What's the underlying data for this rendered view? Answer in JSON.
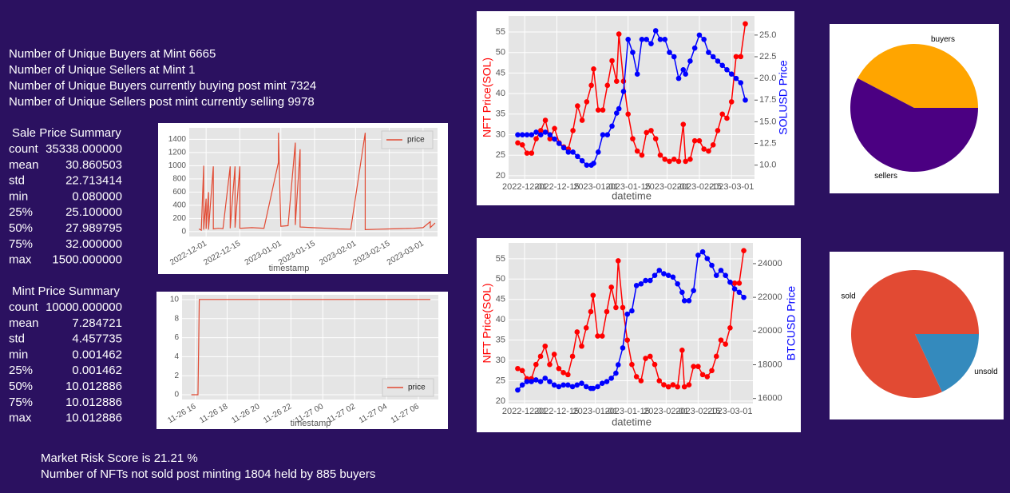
{
  "summary": {
    "lines": [
      "Number of Unique Buyers at Mint 6665",
      "Number of Unique Sellers at Mint 1",
      "Number of Unique Buyers currently buying post mint 7324",
      "Number of Unique Sellers post mint currently selling 9978"
    ]
  },
  "sale_summary": {
    "title": "Sale Price Summary",
    "rows": [
      [
        "count",
        "35338.000000"
      ],
      [
        "mean",
        "30.860503"
      ],
      [
        "std",
        "22.713414"
      ],
      [
        "min",
        "0.080000"
      ],
      [
        "25%",
        "25.100000"
      ],
      [
        "50%",
        "27.989795"
      ],
      [
        "75%",
        "32.000000"
      ],
      [
        "max",
        "1500.000000"
      ]
    ]
  },
  "mint_summary": {
    "title": "Mint Price Summary",
    "rows": [
      [
        "count",
        "10000.000000"
      ],
      [
        "mean",
        "7.284721"
      ],
      [
        "std",
        "4.457735"
      ],
      [
        "min",
        "0.001462"
      ],
      [
        "25%",
        "0.001462"
      ],
      [
        "50%",
        "10.012886"
      ],
      [
        "75%",
        "10.012886"
      ],
      [
        "max",
        "10.012886"
      ]
    ]
  },
  "footer": {
    "lines": [
      "Market Risk Score is 21.21 %",
      "Number of NFTs not sold post minting 1804 held by 885 buyers"
    ]
  },
  "chart_data": [
    {
      "type": "line",
      "xlabel": "timestamp",
      "grid": true,
      "legend": "upper right",
      "x": [
        "2022-11-28",
        "2022-11-29",
        "2022-11-30",
        "2022-11-30",
        "2022-12-01",
        "2022-12-01",
        "2022-12-02",
        "2022-12-02",
        "2022-12-04",
        "2022-12-04",
        "2022-12-06",
        "2022-12-08",
        "2022-12-11",
        "2022-12-11",
        "2022-12-13",
        "2022-12-13",
        "2022-12-15",
        "2022-12-15",
        "2022-12-20",
        "2022-12-25",
        "2022-12-31",
        "2022-12-31",
        "2023-01-01",
        "2023-01-04",
        "2023-01-07",
        "2023-01-07",
        "2023-01-09",
        "2023-01-09",
        "2023-01-14",
        "2023-01-20",
        "2023-01-25",
        "2023-01-30",
        "2023-02-05",
        "2023-02-05",
        "2023-02-10",
        "2023-02-15",
        "2023-02-20",
        "2023-02-25",
        "2023-03-01",
        "2023-03-04",
        "2023-03-04",
        "2023-03-06"
      ],
      "series": [
        {
          "name": "price",
          "color": "#e24a33",
          "values": [
            40,
            20,
            1000,
            30,
            500,
            40,
            600,
            30,
            990,
            40,
            50,
            45,
            990,
            50,
            990,
            60,
            990,
            50,
            60,
            50,
            1050,
            1500,
            80,
            90,
            1350,
            100,
            1250,
            70,
            60,
            50,
            40,
            35,
            1500,
            30,
            35,
            40,
            45,
            50,
            60,
            150,
            60,
            130
          ]
        }
      ],
      "xlim": [
        "2022-11-24",
        "2023-03-07"
      ],
      "xticks": [
        "2022-12-01",
        "2022-12-15",
        "2023-01-01",
        "2023-01-15",
        "2023-02-01",
        "2023-02-15",
        "2023-03-01"
      ],
      "ylim": [
        -75,
        1575
      ],
      "yticks": [
        0,
        200,
        400,
        600,
        800,
        1000,
        1200,
        1400
      ]
    },
    {
      "type": "line",
      "xlabel": "timestamp",
      "grid": true,
      "legend": "lower right",
      "x": [
        "11-26 15:45",
        "11-26 16:10",
        "11-26 16:15",
        "11-27 06:45"
      ],
      "series": [
        {
          "name": "price",
          "color": "#e24a33",
          "values": [
            0.001462,
            0.001462,
            10.012886,
            10.012886
          ]
        }
      ],
      "xlim": [
        "11-26 15:10",
        "11-27 07:15"
      ],
      "xticks": [
        "11-26 16",
        "11-26 18",
        "11-26 20",
        "11-26 22",
        "11-27 00",
        "11-27 02",
        "11-27 04",
        "11-27 06"
      ],
      "ylim": [
        -0.5,
        10.5
      ],
      "yticks": [
        0,
        2,
        4,
        6,
        8,
        10
      ]
    },
    {
      "type": "line",
      "xlabel": "datetime",
      "ylabel": "NFT Price(SOL)",
      "y2label": "SOLUSD Price",
      "grid": true,
      "markers": true,
      "x": [
        "2022-11-28",
        "2022-11-30",
        "2022-12-02",
        "2022-12-04",
        "2022-12-06",
        "2022-12-08",
        "2022-12-10",
        "2022-12-12",
        "2022-12-14",
        "2022-12-16",
        "2022-12-18",
        "2022-12-20",
        "2022-12-22",
        "2022-12-24",
        "2022-12-26",
        "2022-12-28",
        "2022-12-30",
        "2022-12-31",
        "2023-01-02",
        "2023-01-04",
        "2023-01-06",
        "2023-01-08",
        "2023-01-10",
        "2023-01-11",
        "2023-01-13",
        "2023-01-15",
        "2023-01-17",
        "2023-01-19",
        "2023-01-21",
        "2023-01-23",
        "2023-01-25",
        "2023-01-27",
        "2023-01-29",
        "2023-01-31",
        "2023-02-02",
        "2023-02-04",
        "2023-02-06",
        "2023-02-08",
        "2023-02-09",
        "2023-02-11",
        "2023-02-13",
        "2023-02-15",
        "2023-02-17",
        "2023-02-19",
        "2023-02-21",
        "2023-02-23",
        "2023-02-25",
        "2023-02-27",
        "2023-03-01",
        "2023-03-03",
        "2023-03-05",
        "2023-03-07"
      ],
      "series": [
        {
          "color": "#ff0000",
          "values": [
            28,
            27.5,
            25.5,
            25.5,
            29,
            31,
            33.5,
            29,
            31.5,
            28,
            27,
            26.5,
            31,
            37,
            33.5,
            38,
            42,
            46,
            36,
            36,
            42,
            48,
            43,
            54.5,
            43,
            35,
            29,
            26,
            25,
            30.5,
            31,
            29,
            25,
            24,
            23.5,
            24,
            23.5,
            32.5,
            23.5,
            24,
            28.5,
            28.5,
            26.5,
            26,
            27.5,
            31,
            35,
            34,
            38,
            49,
            49,
            57
          ]
        },
        {
          "color": "#0000ff",
          "axis": "y2",
          "values": [
            13.5,
            13.5,
            13.5,
            13.5,
            13.8,
            13.5,
            13.8,
            13.5,
            13,
            12.5,
            12,
            11.5,
            11.5,
            11,
            10.5,
            10,
            10,
            10.2,
            11.5,
            13.5,
            13.5,
            14.5,
            16,
            16.5,
            18.5,
            24.5,
            23,
            20.5,
            24.5,
            24.5,
            24,
            25.5,
            24.5,
            24.5,
            23,
            22.5,
            20,
            21,
            20.5,
            22,
            23.5,
            25,
            24.5,
            23,
            22.5,
            22,
            21.5,
            21,
            20.5,
            20,
            19.5,
            17.5
          ]
        }
      ],
      "xlim": [
        "2022-11-24",
        "2023-03-11"
      ],
      "xticks": [
        "2022-12-01",
        "2022-12-15",
        "2023-01-01",
        "2023-01-15",
        "2023-02-01",
        "2023-02-15",
        "2023-03-01"
      ],
      "ylim": [
        19.2,
        58.9
      ],
      "yticks": [
        20,
        25,
        30,
        35,
        40,
        45,
        50,
        55
      ],
      "y2lim": [
        8.4,
        27.2
      ],
      "y2ticks": [
        {
          "value": 10,
          "label": "10.0"
        },
        12.5,
        {
          "value": 15,
          "label": "15.0"
        },
        17.5,
        {
          "value": 20,
          "label": "20.0"
        },
        22.5,
        {
          "value": 25,
          "label": "25.0"
        }
      ]
    },
    {
      "type": "line",
      "xlabel": "datetime",
      "ylabel": "NFT Price(SOL)",
      "y2label": "BTCUSD Price",
      "grid": true,
      "markers": true,
      "x": [
        "2022-11-28",
        "2022-11-30",
        "2022-12-02",
        "2022-12-04",
        "2022-12-06",
        "2022-12-08",
        "2022-12-10",
        "2022-12-12",
        "2022-12-14",
        "2022-12-16",
        "2022-12-18",
        "2022-12-20",
        "2022-12-22",
        "2022-12-24",
        "2022-12-26",
        "2022-12-28",
        "2022-12-30",
        "2022-12-31",
        "2023-01-02",
        "2023-01-04",
        "2023-01-06",
        "2023-01-08",
        "2023-01-10",
        "2023-01-11",
        "2023-01-13",
        "2023-01-15",
        "2023-01-17",
        "2023-01-19",
        "2023-01-21",
        "2023-01-23",
        "2023-01-25",
        "2023-01-27",
        "2023-01-29",
        "2023-01-31",
        "2023-02-02",
        "2023-02-04",
        "2023-02-06",
        "2023-02-08",
        "2023-02-09",
        "2023-02-11",
        "2023-02-13",
        "2023-02-15",
        "2023-02-17",
        "2023-02-19",
        "2023-02-21",
        "2023-02-23",
        "2023-02-25",
        "2023-02-27",
        "2023-03-01",
        "2023-03-03",
        "2023-03-05",
        "2023-03-07"
      ],
      "series": [
        {
          "color": "#ff0000",
          "values": [
            28,
            27.5,
            25.5,
            25.5,
            29,
            31,
            33.5,
            29,
            31.5,
            28,
            27,
            26.5,
            31,
            37,
            33.5,
            38,
            42,
            46,
            36,
            36,
            42,
            48,
            43,
            54.5,
            43,
            35,
            29,
            26,
            25,
            30.5,
            31,
            29,
            25,
            24,
            23.5,
            24,
            23.5,
            32.5,
            23.5,
            24,
            28.5,
            28.5,
            26.5,
            26,
            27.5,
            31,
            35,
            34,
            38,
            49,
            49,
            57
          ]
        },
        {
          "color": "#0000ff",
          "axis": "y2",
          "values": [
            16500,
            16800,
            17000,
            17000,
            17100,
            17000,
            17200,
            17000,
            16800,
            16700,
            16800,
            16800,
            16700,
            16800,
            16900,
            16700,
            16600,
            16600,
            16700,
            16900,
            17000,
            17200,
            17500,
            18000,
            19000,
            21000,
            21200,
            22700,
            22800,
            23000,
            23000,
            23300,
            23600,
            23400,
            23300,
            23200,
            22800,
            22300,
            21800,
            21800,
            22400,
            24500,
            24700,
            24300,
            23900,
            23300,
            23600,
            23300,
            22900,
            22500,
            22300,
            22000
          ]
        }
      ],
      "xlim": [
        "2022-11-24",
        "2023-03-11"
      ],
      "xticks": [
        "2022-12-01",
        "2022-12-15",
        "2023-01-01",
        "2023-01-15",
        "2023-02-01",
        "2023-02-15",
        "2023-03-01"
      ],
      "ylim": [
        19.4,
        58.9
      ],
      "yticks": [
        20,
        25,
        30,
        35,
        40,
        45,
        50,
        55
      ],
      "y2lim": [
        15700,
        25230
      ],
      "y2ticks": [
        16000,
        18000,
        20000,
        22000,
        24000
      ]
    },
    {
      "type": "pie",
      "labels": [
        "buyers",
        "sellers"
      ],
      "values": [
        7324,
        9978
      ],
      "colors": [
        "#ffa500",
        "#4b0082"
      ]
    },
    {
      "type": "pie",
      "labels": [
        "sold",
        "unsold"
      ],
      "values": [
        8196,
        1804
      ],
      "colors": [
        "#e24a33",
        "#348abd"
      ]
    }
  ]
}
